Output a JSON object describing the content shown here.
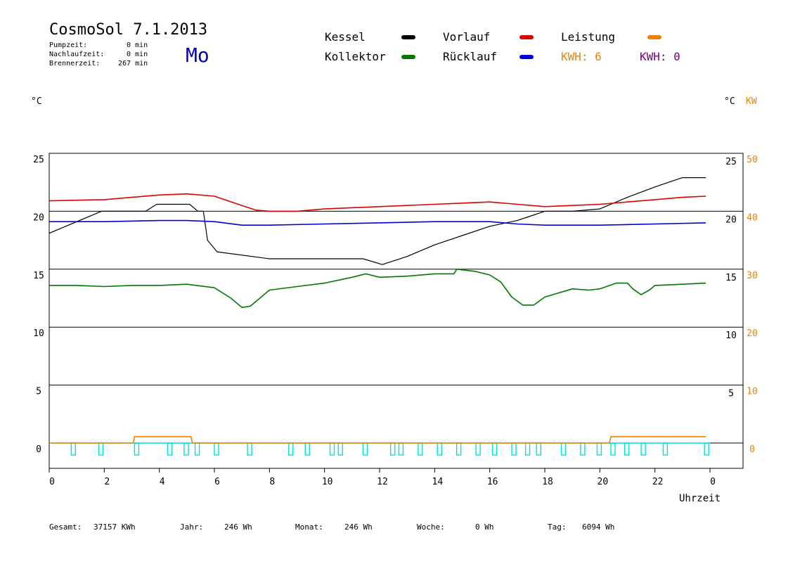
{
  "header": {
    "title": "CosmoSol 7.1.2013",
    "day": "Mo",
    "pumpzeit_label": "Pumpzeit:",
    "pumpzeit_value": "0 min",
    "nachlauf_label": "Nachlaufzeit:",
    "nachlauf_value": "0 min",
    "brenner_label": "Brennerzeit:",
    "brenner_value": "267 min"
  },
  "legend": {
    "kessel": "Kessel",
    "kollektor": "Kollektor",
    "vorlauf": "Vorlauf",
    "ruecklauf": "Rücklauf",
    "leistung": "Leistung",
    "kwh_a": "KWH: 6",
    "kwh_b": "KWH: 0"
  },
  "colors": {
    "kessel": "#000000",
    "kollektor": "#007800",
    "vorlauf": "#dc0000",
    "ruecklauf": "#0000dc",
    "leistung": "#f08000",
    "pump": "#00e0e0",
    "kwh_b": "#800080",
    "day": "#0000c8"
  },
  "axes": {
    "left_unit": "°C",
    "right_unit": "°C",
    "right_unit2": "KW",
    "xlabel": "Uhrzeit"
  },
  "footer": {
    "gesamt_label": "Gesamt:",
    "gesamt_value": "37157 KWh",
    "jahr_label": "Jahr:",
    "jahr_value": "246 Wh",
    "monat_label": "Monat:",
    "monat_value": "246 Wh",
    "woche_label": "Woche:",
    "woche_value": "0 Wh",
    "tag_label": "Tag:",
    "tag_value": "6094 Wh"
  },
  "chart_data": {
    "type": "line",
    "xlabel": "Uhrzeit",
    "xlim": [
      0,
      24
    ],
    "xticks": [
      "0",
      "2",
      "4",
      "6",
      "8",
      "10",
      "12",
      "14",
      "16",
      "18",
      "20",
      "22",
      "0"
    ],
    "ylim": [
      -2.5,
      25
    ],
    "yticks_left": [
      "0",
      "5",
      "10",
      "15",
      "20",
      "25"
    ],
    "yticks_right": [
      "5",
      "10",
      "15",
      "20",
      "25"
    ],
    "yticks_right2": [
      "0",
      "10",
      "20",
      "30",
      "40",
      "50"
    ],
    "grid": "horizontal",
    "series": [
      {
        "name": "Kessel",
        "color": "#000000",
        "x": [
          0,
          1.9,
          3.5,
          3.9,
          5.1,
          5.4,
          5.6,
          5.75,
          6.1,
          8,
          11.4,
          12.1,
          13,
          14,
          15,
          16,
          17,
          17.5,
          18,
          19,
          20,
          21,
          22,
          23,
          23.85
        ],
        "y": [
          18.1,
          20,
          20,
          20.6,
          20.6,
          20,
          20,
          17.5,
          16.5,
          15.9,
          15.9,
          15.4,
          16.1,
          17.1,
          17.9,
          18.7,
          19.2,
          19.6,
          20,
          20,
          20.2,
          21.2,
          22.1,
          22.9,
          22.9
        ]
      },
      {
        "name": "Vorlauf",
        "color": "#dc0000",
        "x": [
          0,
          2,
          3,
          4,
          5,
          6,
          7,
          7.5,
          8,
          9,
          10,
          12,
          14,
          16,
          17,
          18,
          19,
          20,
          21,
          22,
          23,
          23.85
        ],
        "y": [
          20.9,
          21,
          21.2,
          21.4,
          21.5,
          21.3,
          20.5,
          20.1,
          20,
          20,
          20.2,
          20.4,
          20.6,
          20.8,
          20.6,
          20.4,
          20.5,
          20.6,
          20.8,
          21,
          21.2,
          21.3
        ]
      },
      {
        "name": "Rücklauf",
        "color": "#0000dc",
        "x": [
          0,
          2,
          4,
          5,
          6,
          7,
          8,
          10,
          12,
          14,
          16,
          17,
          18,
          20,
          22,
          23.85
        ],
        "y": [
          19.1,
          19.1,
          19.2,
          19.2,
          19.1,
          18.8,
          18.8,
          18.9,
          19,
          19.1,
          19.1,
          18.9,
          18.8,
          18.8,
          18.9,
          19
        ]
      },
      {
        "name": "Kollektor",
        "color": "#007800",
        "x": [
          0,
          1,
          2,
          3,
          4,
          5,
          6,
          6.6,
          7,
          7.3,
          7.7,
          8,
          9,
          10,
          11,
          11.5,
          12,
          13,
          14,
          14.7,
          14.8,
          15.5,
          16,
          16.4,
          16.8,
          17.2,
          17.6,
          18,
          19,
          19.6,
          20,
          20.6,
          21,
          21.2,
          21.5,
          21.8,
          22,
          23,
          23.85
        ],
        "y": [
          13.6,
          13.6,
          13.5,
          13.6,
          13.6,
          13.7,
          13.4,
          12.5,
          11.7,
          11.8,
          12.6,
          13.2,
          13.5,
          13.8,
          14.3,
          14.6,
          14.3,
          14.4,
          14.6,
          14.6,
          15,
          14.8,
          14.5,
          13.9,
          12.6,
          11.9,
          11.9,
          12.6,
          13.3,
          13.2,
          13.3,
          13.8,
          13.8,
          13.3,
          12.8,
          13.2,
          13.6,
          13.7,
          13.8
        ]
      },
      {
        "name": "Leistung",
        "color": "#f08000",
        "x": [
          0,
          3.05,
          3.1,
          5.15,
          5.2,
          20.35,
          20.4,
          23.85
        ],
        "y": [
          0,
          0,
          0.55,
          0.55,
          0,
          0,
          0.55,
          0.55
        ]
      }
    ],
    "pump_pulses_h": [
      0.8,
      1.8,
      3.1,
      4.3,
      4.9,
      5.3,
      6,
      7.2,
      8.7,
      9.3,
      10.2,
      10.5,
      11.4,
      12.4,
      12.7,
      13.4,
      14.1,
      14.8,
      15.5,
      16.1,
      16.8,
      17.3,
      17.7,
      18.6,
      19.3,
      19.9,
      20.4,
      20.9,
      21.5,
      22.3,
      23.8
    ]
  }
}
